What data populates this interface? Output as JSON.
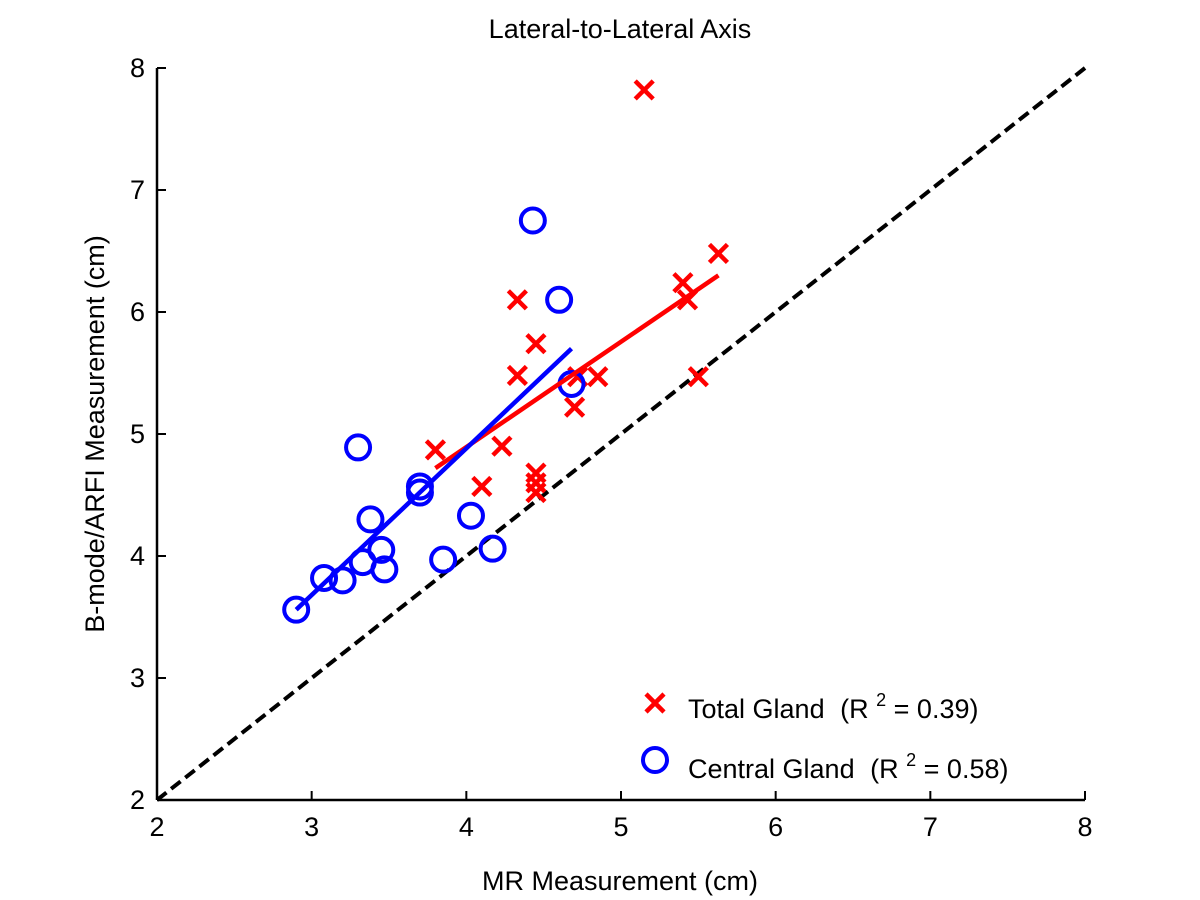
{
  "chart_data": {
    "type": "scatter",
    "title": "Lateral-to-Lateral Axis",
    "xlabel": "MR Measurement (cm)",
    "ylabel": "B-mode/ARFI Measurement (cm)",
    "xlim": [
      2,
      8
    ],
    "ylim": [
      2,
      8
    ],
    "xticks": [
      "2",
      "3",
      "4",
      "5",
      "6",
      "7",
      "8"
    ],
    "yticks": [
      "2",
      "3",
      "4",
      "5",
      "6",
      "7",
      "8"
    ],
    "grid": false,
    "legend_position": "bottom-right",
    "identity_line": {
      "style": "dashed",
      "color": "#000000",
      "from": [
        2,
        2
      ],
      "to": [
        8,
        8
      ]
    },
    "series": [
      {
        "name": "Total Gland",
        "r2_label": "(R",
        "r2_sup": "2",
        "r2_value": " = 0.39)",
        "marker": "x",
        "color": "#ff0000",
        "points": [
          [
            3.8,
            4.87
          ],
          [
            4.1,
            4.57
          ],
          [
            4.23,
            4.9
          ],
          [
            4.33,
            6.1
          ],
          [
            4.33,
            5.48
          ],
          [
            4.45,
            5.74
          ],
          [
            4.45,
            4.68
          ],
          [
            4.45,
            4.6
          ],
          [
            4.45,
            4.52
          ],
          [
            4.7,
            5.22
          ],
          [
            4.72,
            5.47
          ],
          [
            4.85,
            5.47
          ],
          [
            5.15,
            7.82
          ],
          [
            5.4,
            6.24
          ],
          [
            5.43,
            6.1
          ],
          [
            5.5,
            5.47
          ],
          [
            5.63,
            6.48
          ]
        ],
        "fit": {
          "from": [
            3.8,
            4.72
          ],
          "to": [
            5.63,
            6.3
          ]
        }
      },
      {
        "name": "Central Gland",
        "r2_label": "(R",
        "r2_sup": "2",
        "r2_value": " = 0.58)",
        "marker": "o",
        "color": "#0000ff",
        "points": [
          [
            2.9,
            3.56
          ],
          [
            3.08,
            3.82
          ],
          [
            3.2,
            3.8
          ],
          [
            3.3,
            4.89
          ],
          [
            3.33,
            3.95
          ],
          [
            3.38,
            4.3
          ],
          [
            3.45,
            4.05
          ],
          [
            3.47,
            3.89
          ],
          [
            3.7,
            4.57
          ],
          [
            3.7,
            4.52
          ],
          [
            3.85,
            3.97
          ],
          [
            4.03,
            4.33
          ],
          [
            4.17,
            4.06
          ],
          [
            4.43,
            6.75
          ],
          [
            4.6,
            6.1
          ],
          [
            4.68,
            5.41
          ]
        ],
        "fit": {
          "from": [
            2.9,
            3.56
          ],
          "to": [
            4.68,
            5.7
          ]
        }
      }
    ]
  }
}
